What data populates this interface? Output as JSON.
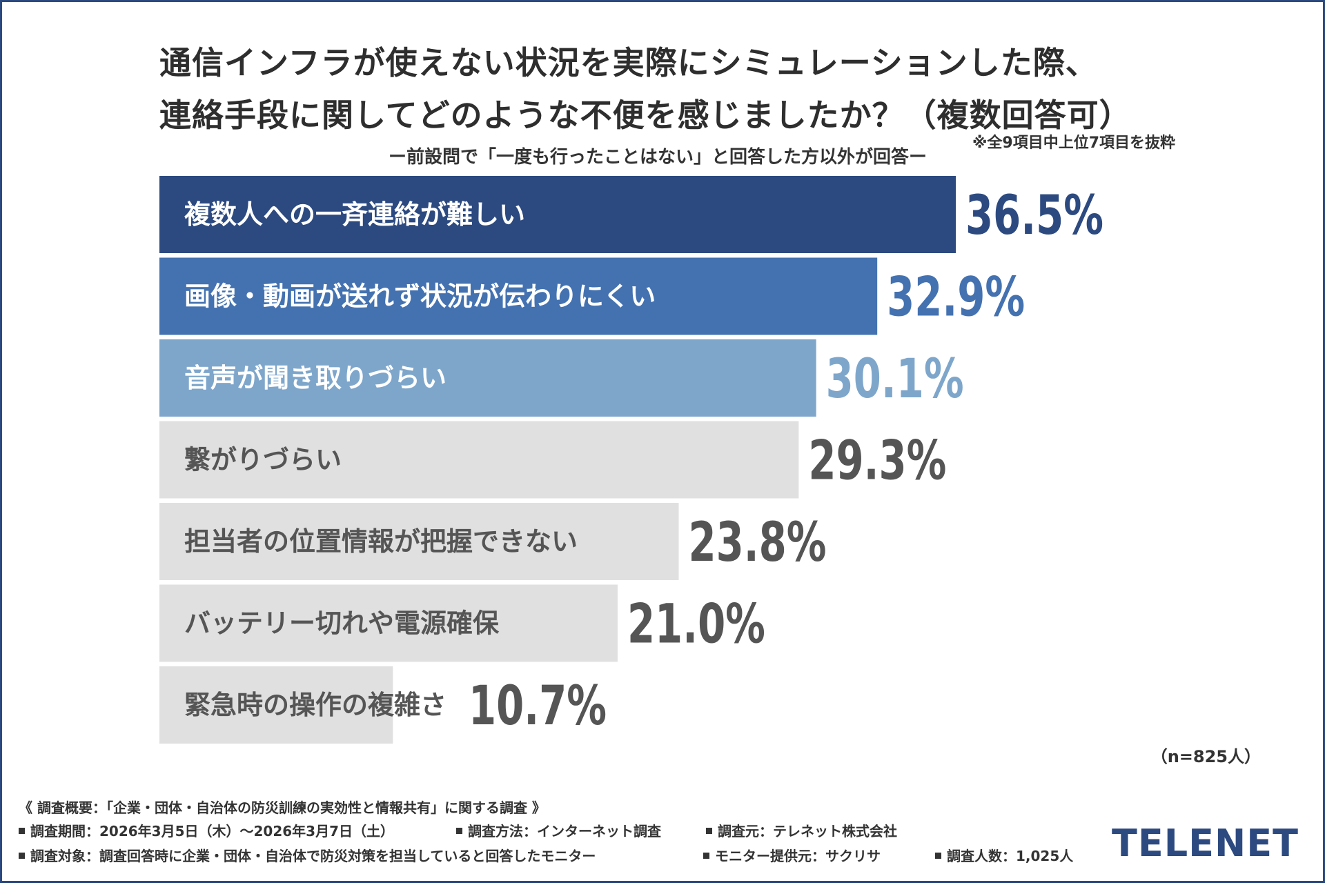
{
  "title_lines": [
    "通信インフラが使えない状況を実際にシミュレーションした際、",
    "連絡手段に関してどのような不便を感じましたか？（複数回答可）"
  ],
  "subtitle": "ー前設問で「一度も行ったことはない」と回答した方以外が回答ー",
  "note": "※全9項目中上位7項目を抜粋",
  "n_label": "（n=825人）",
  "colors": {
    "frame": "#2c4a80",
    "bar_1": "#2c4a80",
    "bar_2": "#4472b0",
    "bar_3": "#7ea6cb",
    "bar_other": "#e0e0e0",
    "label_dark": "#2c4a80",
    "label_mid": "#4472b0",
    "label_light": "#7ea6cb",
    "label_gray": "#555555"
  },
  "chart_data": {
    "type": "bar",
    "orientation": "horizontal",
    "categories": [
      "複数人への一斉連絡が難しい",
      "画像・動画が送れず状況が伝わりにくい",
      "音声が聞き取りづらい",
      "繋がりづらい",
      "担当者の位置情報が把握できない",
      "バッテリー切れや電源確保",
      "緊急時の操作の複雑さ"
    ],
    "values": [
      36.5,
      32.9,
      30.1,
      29.3,
      23.8,
      21.0,
      10.7
    ],
    "value_labels": [
      "36.5%",
      "32.9%",
      "30.1%",
      "29.3%",
      "23.8%",
      "21.0%",
      "10.7%"
    ],
    "unit": "%",
    "xlim": [
      0,
      40
    ],
    "grid": false,
    "legend": "none"
  },
  "footer": {
    "overview": "《 調査概要：「企業・団体・自治体の防災訓練の実効性と情報共有」に関する調査 》",
    "period": "調査期間：2026年3月5日（木）〜2026年3月7日（土）",
    "method": "調査方法：インターネット調査",
    "organizer": "調査元：テレネット株式会社",
    "target": "調査対象：調査回答時に企業・団体・自治体で防災対策を担当していると回答したモニター",
    "provider": "モニター提供元：サクリサ",
    "count": "調査人数：1,025人"
  },
  "logo_text": "TELENET"
}
